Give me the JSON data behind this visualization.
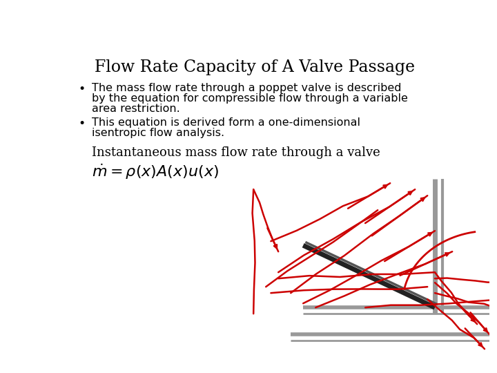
{
  "title": "Flow Rate Capacity of A Valve Passage",
  "title_fontsize": 17,
  "bg_color": "#ffffff",
  "text_color": "#000000",
  "bullet1_line1": "The mass flow rate through a poppet valve is described",
  "bullet1_line2": "by the equation for compressible flow through a variable",
  "bullet1_line3": "area restriction.",
  "bullet2_line1": "This equation is derived form a one-dimensional",
  "bullet2_line2": "isentropic flow analysis.",
  "subheading": "Instantaneous mass flow rate through a valve",
  "equation": "$\\dot{m} = \\rho(x)A(x)u(x)$",
  "body_fontsize": 11.5,
  "sub_fontsize": 13,
  "eq_fontsize": 14,
  "gray_color": "#999999",
  "dark_color": "#222222",
  "red_color": "#cc0000"
}
